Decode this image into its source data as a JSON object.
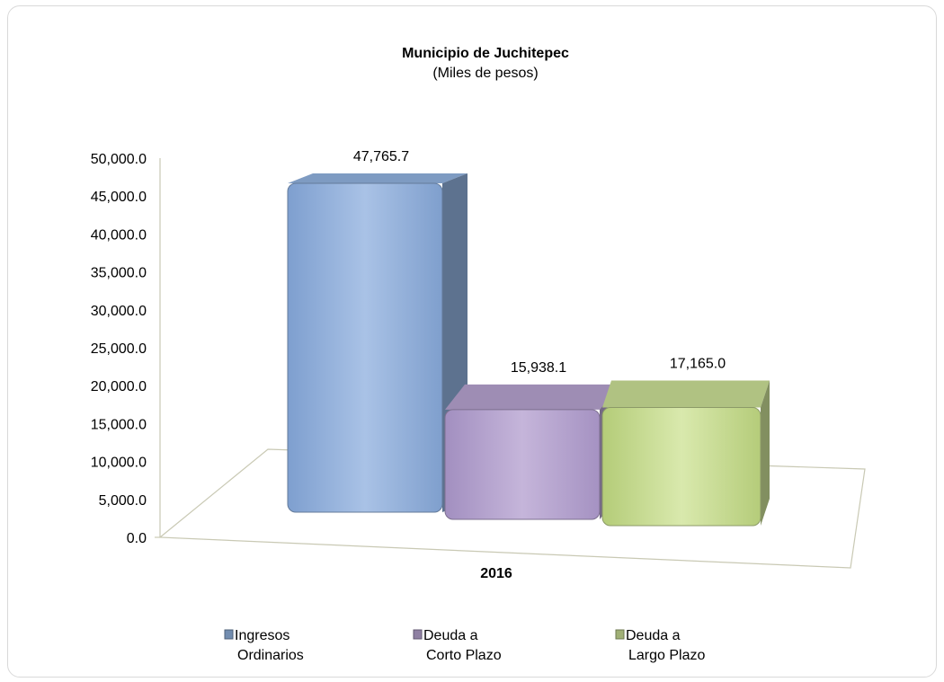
{
  "chart_data": {
    "type": "bar",
    "title": "Municipio de Juchitepec",
    "subtitle": "(Miles de pesos)",
    "categories": [
      "2016"
    ],
    "series": [
      {
        "name": "Ingresos Ordinarios",
        "legend_lines": [
          "Ingresos",
          "Ordinarios"
        ],
        "values": [
          47765.7
        ],
        "label": "47,765.7",
        "color": "#8fb0dc"
      },
      {
        "name": "Deuda a Corto Plazo",
        "legend_lines": [
          "Deuda a",
          "Corto Plazo"
        ],
        "values": [
          15938.1
        ],
        "label": "15,938.1",
        "color": "#b3a0cc"
      },
      {
        "name": "Deuda a Largo Plazo",
        "legend_lines": [
          "Deuda a",
          "Largo Plazo"
        ],
        "values": [
          17165.0
        ],
        "label": "17,165.0",
        "color": "#c8dc94"
      }
    ],
    "y_ticks": [
      "0.0",
      "5,000.0",
      "10,000.0",
      "15,000.0",
      "20,000.0",
      "25,000.0",
      "30,000.0",
      "35,000.0",
      "40,000.0",
      "45,000.0",
      "50,000.0"
    ],
    "ylim": [
      0,
      50000
    ],
    "grid": false,
    "legend_position": "bottom",
    "xlabel": "",
    "ylabel": ""
  }
}
